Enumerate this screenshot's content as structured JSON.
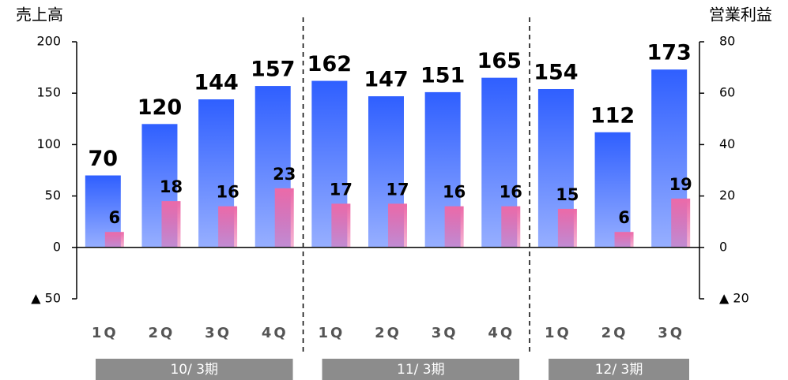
{
  "chart_data": {
    "type": "bar",
    "y_title": "売上高",
    "y2_title": "営業利益",
    "categories": [
      "1Q",
      "2Q",
      "3Q",
      "4Q",
      "1Q",
      "2Q",
      "3Q",
      "4Q",
      "1Q",
      "2Q",
      "3Q"
    ],
    "groups": [
      "10/ 3期",
      "11/ 3期",
      "12/ 3期"
    ],
    "series": [
      {
        "name": "売上高",
        "color": "#2f5fff",
        "values": [
          70,
          120,
          144,
          157,
          162,
          147,
          151,
          165,
          154,
          112,
          173
        ]
      },
      {
        "name": "営業利益",
        "color": "#ec6aa8",
        "axis": "y2",
        "values": [
          6,
          18,
          16,
          23,
          17,
          17,
          16,
          16,
          15,
          6,
          19
        ]
      }
    ],
    "ylim": [
      -50,
      200
    ],
    "yticks": [
      {
        "value": -50,
        "label": "▲ 50"
      },
      0,
      50,
      100,
      150,
      200
    ],
    "y2lim": [
      -20,
      80
    ],
    "y2ticks": [
      {
        "value": -20,
        "label": "▲ 20"
      },
      0,
      20,
      40,
      60,
      80
    ]
  }
}
